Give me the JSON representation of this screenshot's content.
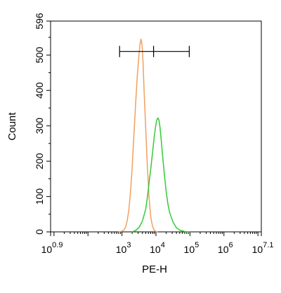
{
  "chart_data": {
    "type": "line",
    "xlabel": "PE-H",
    "ylabel": "Count",
    "x_scale": "log",
    "xlim_log10": [
      0.9,
      7.1
    ],
    "ylim": [
      0,
      596
    ],
    "x_ticks": [
      {
        "base": "10",
        "exp": "0.9",
        "log10": 0.9
      },
      {
        "base": "10",
        "exp": "3",
        "log10": 3
      },
      {
        "base": "10",
        "exp": "4",
        "log10": 4
      },
      {
        "base": "10",
        "exp": "5",
        "log10": 5
      },
      {
        "base": "10",
        "exp": "6",
        "log10": 6
      },
      {
        "base": "10",
        "exp": "7.1",
        "log10": 7.1
      }
    ],
    "y_ticks": [
      0,
      100,
      200,
      300,
      400,
      500,
      596
    ],
    "gate": {
      "y": 510,
      "left_log10": 2.93,
      "mid_log10": 3.93,
      "right_log10": 4.98
    },
    "series": [
      {
        "color": "#f0a060",
        "points": [
          [
            2.9,
            0
          ],
          [
            3.0,
            2
          ],
          [
            3.05,
            5
          ],
          [
            3.1,
            12
          ],
          [
            3.15,
            30
          ],
          [
            3.2,
            60
          ],
          [
            3.25,
            110
          ],
          [
            3.3,
            180
          ],
          [
            3.35,
            270
          ],
          [
            3.4,
            360
          ],
          [
            3.45,
            440
          ],
          [
            3.5,
            500
          ],
          [
            3.53,
            530
          ],
          [
            3.56,
            545
          ],
          [
            3.59,
            530
          ],
          [
            3.62,
            480
          ],
          [
            3.65,
            400
          ],
          [
            3.7,
            290
          ],
          [
            3.75,
            180
          ],
          [
            3.8,
            95
          ],
          [
            3.85,
            40
          ],
          [
            3.9,
            15
          ],
          [
            3.95,
            5
          ],
          [
            4.0,
            1
          ],
          [
            4.05,
            0
          ]
        ]
      },
      {
        "color": "#33cc33",
        "points": [
          [
            3.3,
            0
          ],
          [
            3.4,
            4
          ],
          [
            3.5,
            12
          ],
          [
            3.6,
            30
          ],
          [
            3.7,
            65
          ],
          [
            3.75,
            100
          ],
          [
            3.8,
            140
          ],
          [
            3.85,
            180
          ],
          [
            3.9,
            225
          ],
          [
            3.95,
            270
          ],
          [
            4.0,
            305
          ],
          [
            4.03,
            318
          ],
          [
            4.06,
            322
          ],
          [
            4.09,
            315
          ],
          [
            4.12,
            295
          ],
          [
            4.16,
            255
          ],
          [
            4.2,
            210
          ],
          [
            4.25,
            160
          ],
          [
            4.3,
            115
          ],
          [
            4.35,
            80
          ],
          [
            4.4,
            55
          ],
          [
            4.5,
            28
          ],
          [
            4.6,
            12
          ],
          [
            4.7,
            5
          ],
          [
            4.85,
            1
          ],
          [
            5.0,
            0
          ]
        ]
      }
    ]
  }
}
